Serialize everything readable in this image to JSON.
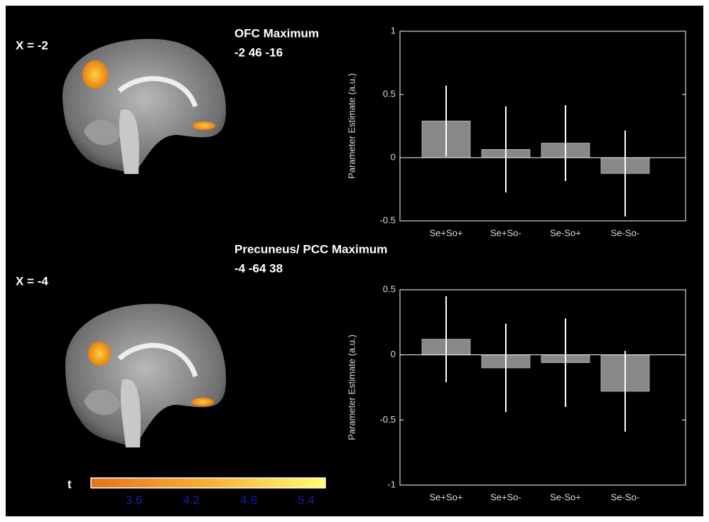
{
  "chart_data": [
    {
      "type": "bar",
      "title": "OFC Maximum",
      "subtitle": "-2 46 -16",
      "annotation": "X = -2",
      "ylabel": "Parameter Estimate (a.u.)",
      "categories": [
        "Se+So+",
        "Se+So-",
        "Se-So+",
        "Se-So-"
      ],
      "values": [
        0.29,
        0.065,
        0.115,
        -0.125
      ],
      "errors": [
        0.28,
        0.34,
        0.3,
        0.34
      ],
      "color": "#888888",
      "error_color": "#ffffff",
      "ylim": [
        -0.5,
        1
      ],
      "yticks": [
        -0.5,
        0,
        0.5,
        1
      ]
    },
    {
      "type": "bar",
      "title": "Precuneus/ PCC Maximum",
      "subtitle": "-4 -64 38",
      "annotation": "X = -4",
      "ylabel": "Parameter Estimate (a.u.)",
      "categories": [
        "Se+So+",
        "Se+So-",
        "Se-So+",
        "Se-So-"
      ],
      "values": [
        0.12,
        -0.1,
        -0.06,
        -0.28
      ],
      "errors": [
        0.33,
        0.34,
        0.34,
        0.31
      ],
      "color": "#888888",
      "error_color": "#ffffff",
      "ylim": [
        -1,
        0.5
      ],
      "yticks": [
        -1,
        -0.5,
        0,
        0.5
      ]
    }
  ],
  "colorbar": {
    "label": "t",
    "lim": [
      3.15,
      5.6
    ],
    "ticks": [
      3.6,
      4.2,
      4.8,
      5.4
    ]
  }
}
